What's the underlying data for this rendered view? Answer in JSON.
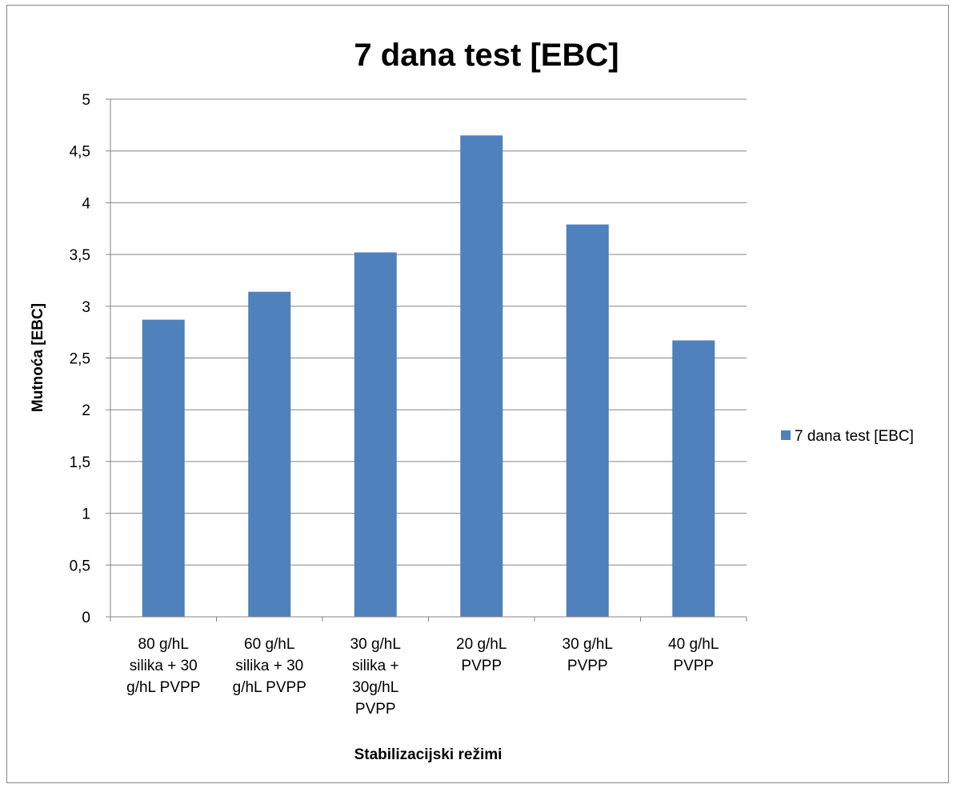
{
  "chart_data": {
    "type": "bar",
    "title": "7 dana test [EBC]",
    "xlabel": "Stabilizacijski režimi",
    "ylabel": "Mutnoća [EBC]",
    "ylim": [
      0,
      5
    ],
    "y_ticks": [
      "0",
      "0,5",
      "1",
      "1,5",
      "2",
      "2,5",
      "3",
      "3,5",
      "4",
      "4,5",
      "5"
    ],
    "grid": true,
    "legend_position": "right",
    "categories": [
      [
        "80 g/hL",
        "silika + 30",
        "g/hL PVPP"
      ],
      [
        "60 g/hL",
        "silika + 30",
        "g/hL PVPP"
      ],
      [
        "30 g/hL",
        "silika +",
        "30g/hL",
        "PVPP"
      ],
      [
        "20 g/hL",
        "PVPP"
      ],
      [
        "30 g/hL",
        "PVPP"
      ],
      [
        "40 g/hL",
        "PVPP"
      ]
    ],
    "series": [
      {
        "name": "7 dana test [EBC]",
        "color": "#4F81BD",
        "values": [
          2.87,
          3.14,
          3.52,
          4.65,
          3.79,
          2.67
        ]
      }
    ]
  }
}
